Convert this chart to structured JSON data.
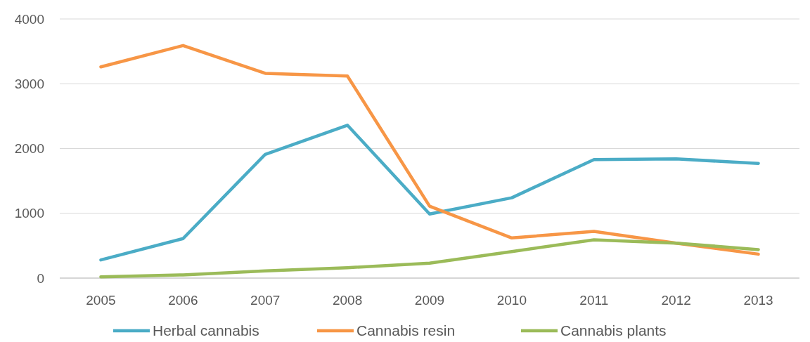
{
  "chart_data": {
    "type": "line",
    "categories": [
      "2005",
      "2006",
      "2007",
      "2008",
      "2009",
      "2010",
      "2011",
      "2012",
      "2013"
    ],
    "series": [
      {
        "name": "Herbal cannabis",
        "color": "#4bacc6",
        "values": [
          280,
          610,
          1910,
          2360,
          990,
          1240,
          1830,
          1840,
          1770
        ]
      },
      {
        "name": "Cannabis resin",
        "color": "#f79646",
        "values": [
          3260,
          3590,
          3160,
          3120,
          1110,
          620,
          720,
          540,
          370
        ]
      },
      {
        "name": "Cannabis plants",
        "color": "#9bbb59",
        "values": [
          20,
          50,
          110,
          160,
          230,
          410,
          590,
          540,
          440
        ]
      }
    ],
    "ylim": [
      0,
      4000
    ],
    "yticks": [
      0,
      1000,
      2000,
      3000,
      4000
    ],
    "grid": "y",
    "legend": "bottom",
    "marker": "none",
    "line_style": "solid"
  }
}
